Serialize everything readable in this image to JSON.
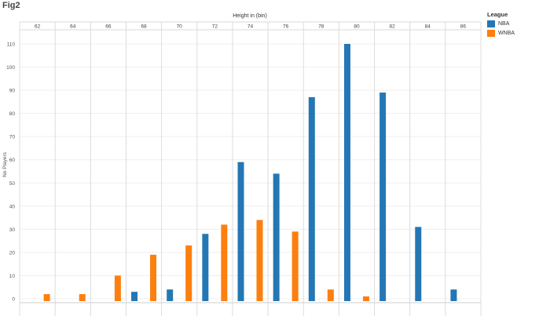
{
  "figure": {
    "title": "Fig2"
  },
  "legend": {
    "title": "League",
    "items": [
      {
        "label": "NBA",
        "color": "#2477b4"
      },
      {
        "label": "WNBA",
        "color": "#fd7f0e"
      }
    ]
  },
  "chart_data": {
    "type": "bar",
    "title": "Fig2",
    "xlabel": "Height in (bin)",
    "ylabel": "No Players",
    "categories": [
      "62",
      "64",
      "66",
      "68",
      "70",
      "72",
      "74",
      "76",
      "78",
      "80",
      "82",
      "84",
      "86"
    ],
    "series": [
      {
        "name": "NBA",
        "color": "#2477b4",
        "values": [
          null,
          null,
          null,
          3,
          4,
          28,
          59,
          54,
          87,
          110,
          89,
          31,
          4
        ]
      },
      {
        "name": "WNBA",
        "color": "#fd7f0e",
        "values": [
          2,
          2,
          10,
          19,
          23,
          32,
          34,
          29,
          4,
          1,
          null,
          null,
          null
        ]
      }
    ],
    "yticks": [
      0,
      10,
      20,
      30,
      40,
      50,
      60,
      70,
      80,
      90,
      100,
      110
    ],
    "ylim": [
      -1,
      116
    ],
    "grid": true,
    "legend_position": "right"
  }
}
